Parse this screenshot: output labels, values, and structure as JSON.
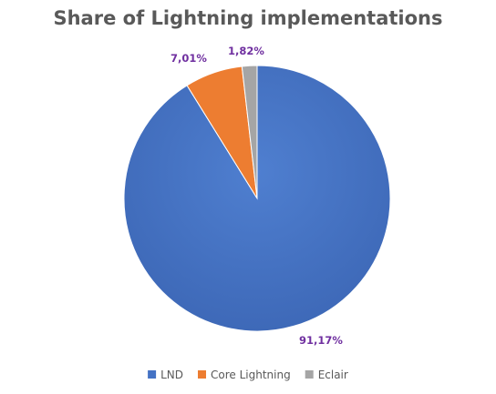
{
  "chart_data": {
    "type": "pie",
    "title": "Share of Lightning implementations",
    "legend_position": "bottom",
    "slices": [
      {
        "name": "LND",
        "value": 91.17,
        "label": "91,17%",
        "color": "#4472c4"
      },
      {
        "name": "Core Lightning",
        "value": 7.01,
        "label": "7,01%",
        "color": "#ed7d31"
      },
      {
        "name": "Eclair",
        "value": 1.82,
        "label": "1,82%",
        "color": "#a5a5a5"
      }
    ]
  }
}
